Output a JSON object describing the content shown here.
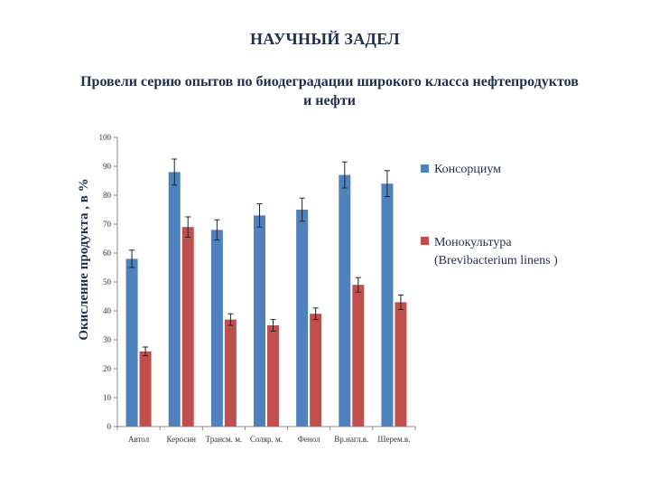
{
  "slide": {
    "title": "НАУЧНЫЙ ЗАДЕЛ",
    "subtitle_line1": "Провели серию опытов по биодеградации   широкого класса нефтепродуктов",
    "subtitle_line2": "и нефти"
  },
  "chart_data": {
    "type": "bar",
    "ylabel": "Окисление продукта , в %",
    "ylim": [
      0,
      100
    ],
    "yticks": [
      0,
      10,
      20,
      30,
      40,
      50,
      60,
      70,
      80,
      90,
      100
    ],
    "categories": [
      "Автол",
      "Керосин",
      "Трансм. м.",
      "Соляр. м.",
      "Фенол",
      "Вр.нагл.в.",
      "Шерем.в."
    ],
    "series": [
      {
        "name": "Консорциум",
        "color": "#4f81bd",
        "values": [
          58,
          88,
          68,
          73,
          75,
          87,
          84
        ],
        "errors": [
          3,
          4.5,
          3.5,
          4,
          4,
          4.5,
          4.5
        ]
      },
      {
        "name_lines": [
          "Монокультура",
          "(Brevibacterium linens )"
        ],
        "color": "#c0504d",
        "values": [
          26,
          69,
          37,
          35,
          39,
          49,
          43
        ],
        "errors": [
          1.5,
          3.5,
          2,
          2,
          2,
          2.5,
          2.5
        ]
      }
    ],
    "legend_position": "right",
    "grid": false
  }
}
